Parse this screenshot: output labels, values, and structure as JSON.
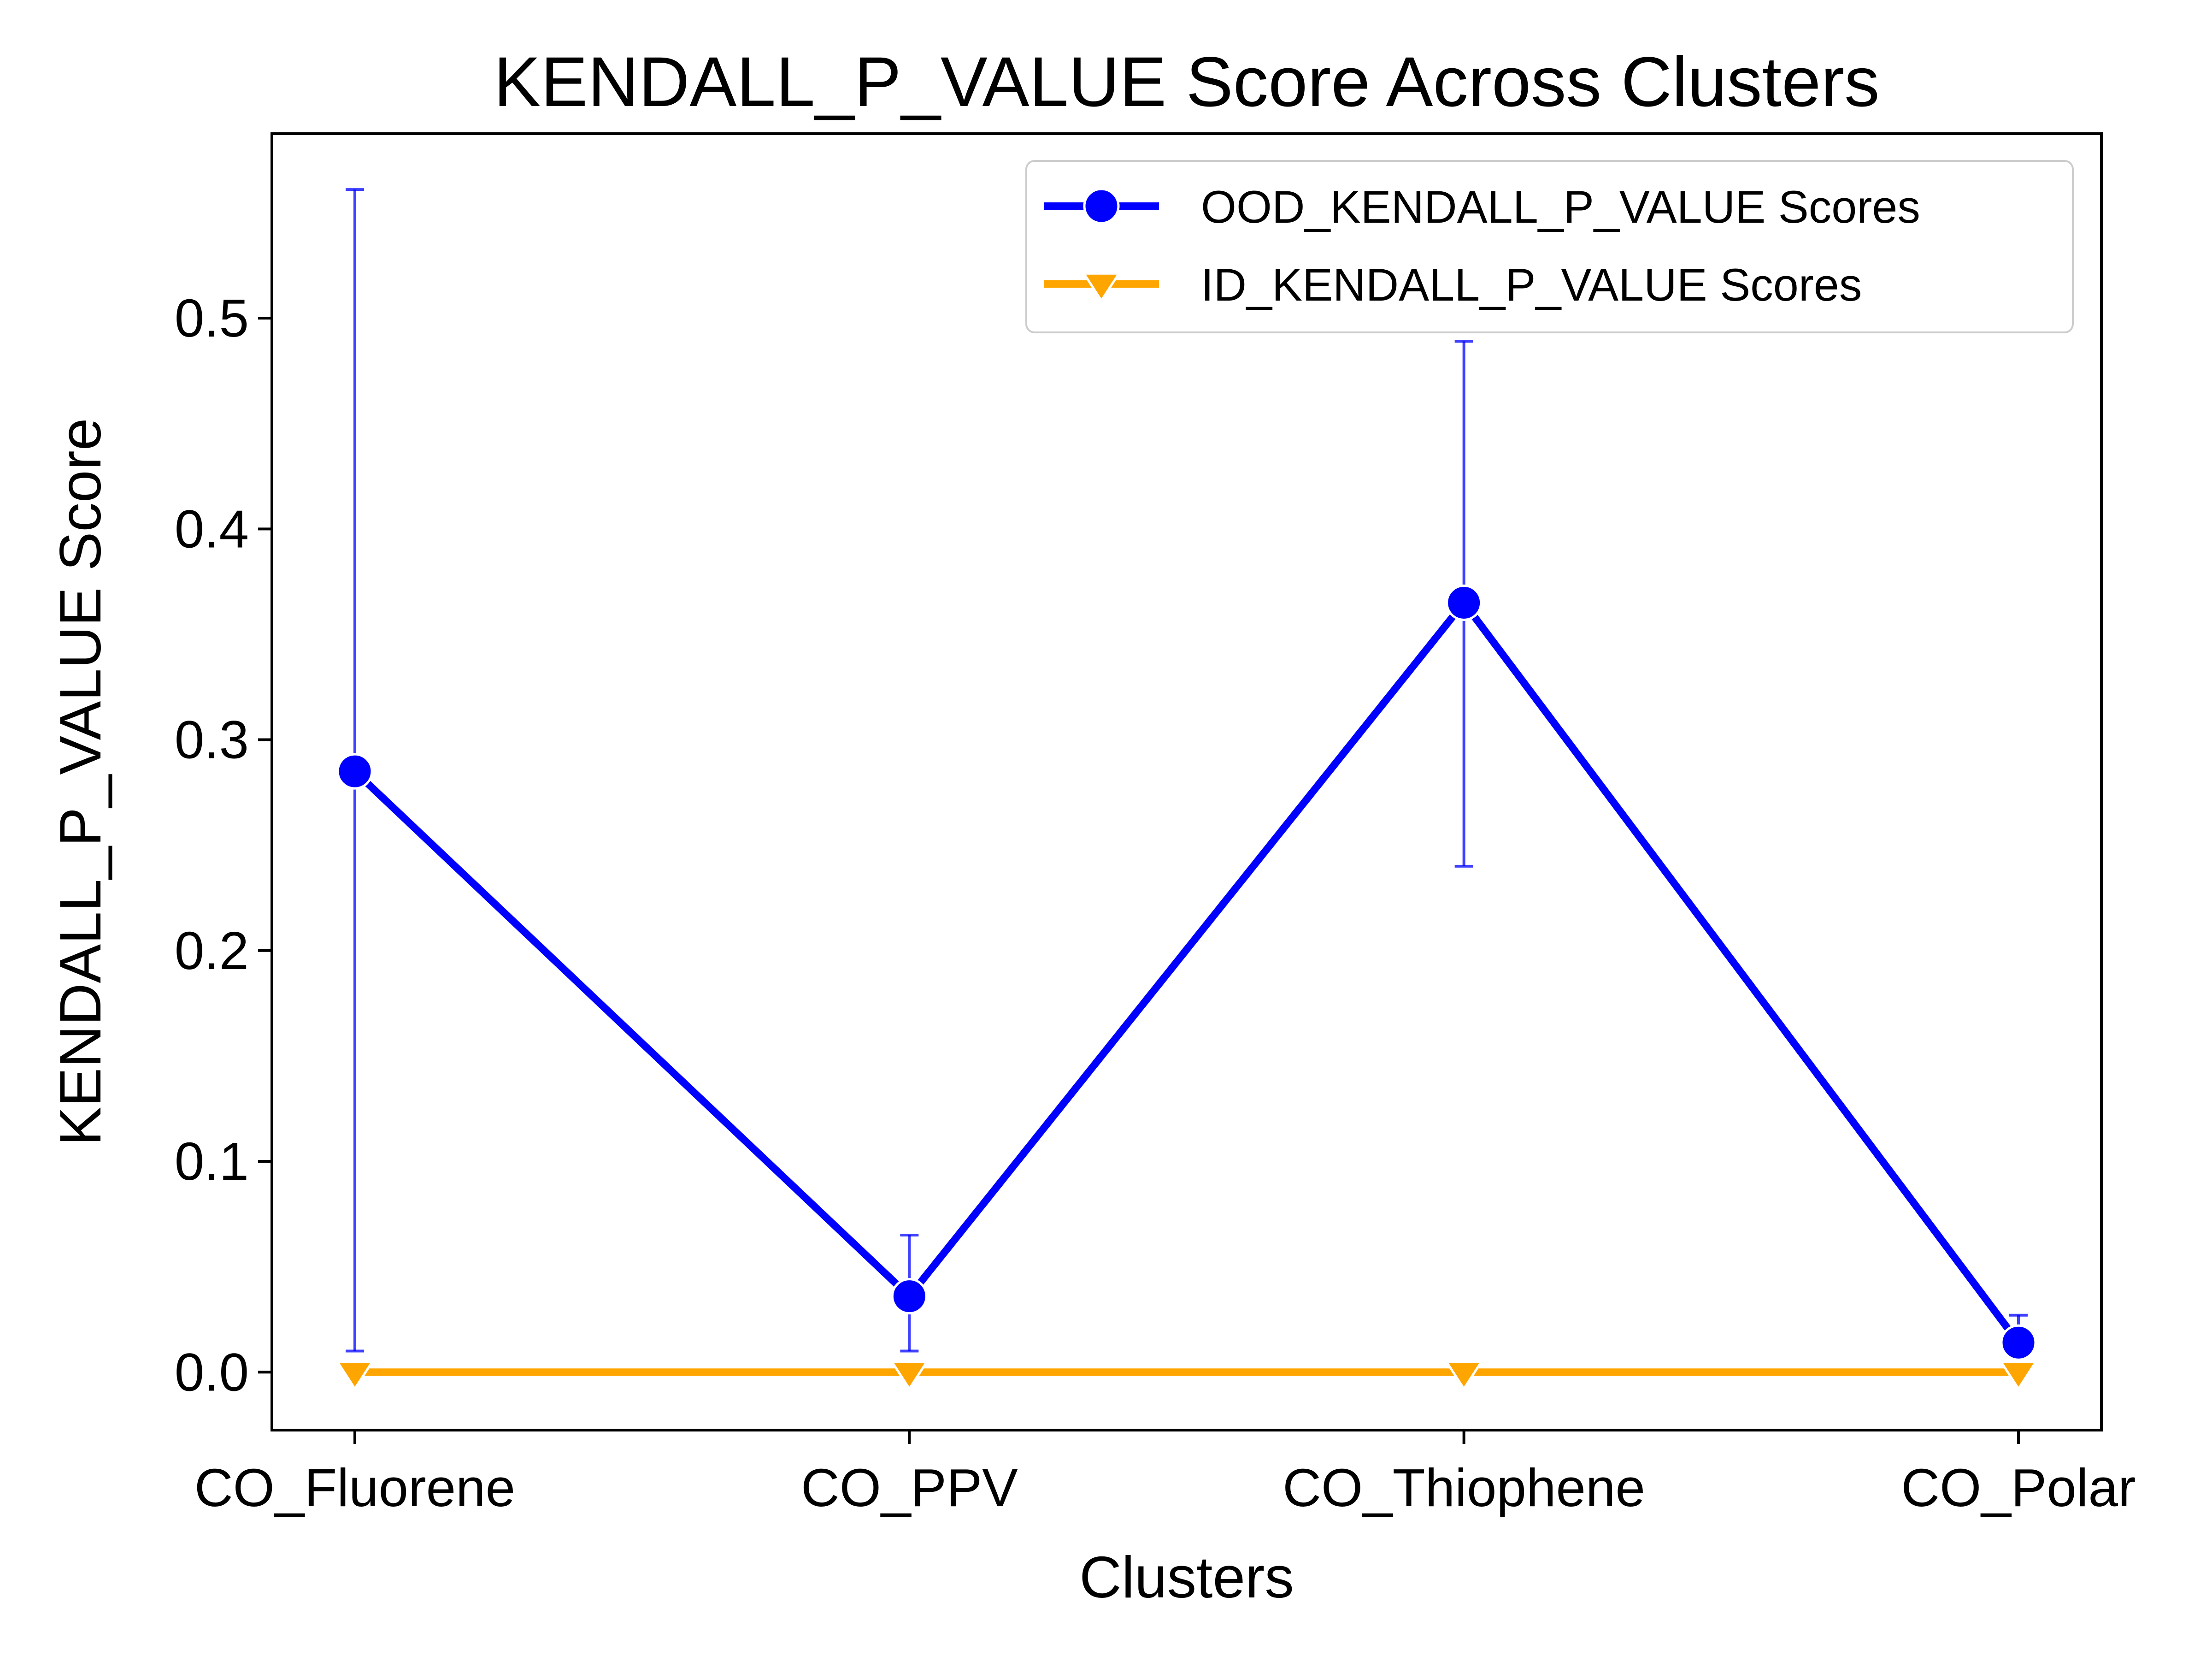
{
  "chart_data": {
    "type": "line",
    "title": "KENDALL_P_VALUE Score Across Clusters",
    "xlabel": "Clusters",
    "ylabel": "KENDALL_P_VALUE Score",
    "categories": [
      "CO_Fluorene",
      "CO_PPV",
      "CO_Thiophene",
      "CO_Polar"
    ],
    "ylim": [
      -0.0275,
      0.5875
    ],
    "yticks": [
      "0.0",
      "0.1",
      "0.2",
      "0.3",
      "0.4",
      "0.5"
    ],
    "grid": false,
    "legend_position": "top-right",
    "series": [
      {
        "name": "OOD_KENDALL_P_VALUE Scores",
        "color": "#0000ff",
        "marker": "circle",
        "values": [
          0.285,
          0.036,
          0.365,
          0.014
        ],
        "error_low": [
          0.01,
          0.01,
          0.24,
          0.004
        ],
        "error_high": [
          0.561,
          0.065,
          0.489,
          0.027
        ]
      },
      {
        "name": "ID_KENDALL_P_VALUE Scores",
        "color": "#ffa500",
        "marker": "triangle-down",
        "values": [
          0.0,
          0.0,
          0.0,
          0.0
        ]
      }
    ]
  }
}
